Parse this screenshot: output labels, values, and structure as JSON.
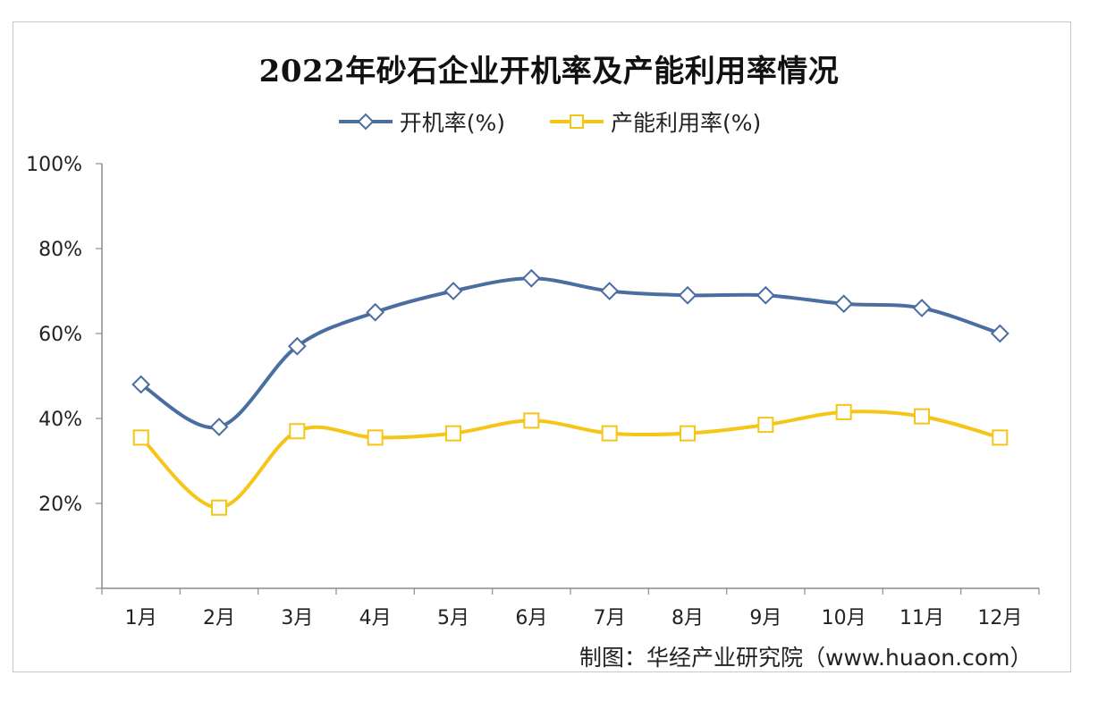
{
  "chart_data": {
    "type": "line",
    "title": "2022年砂石企业开机率及产能利用率情况",
    "categories": [
      "1月",
      "2月",
      "3月",
      "4月",
      "5月",
      "6月",
      "7月",
      "8月",
      "9月",
      "10月",
      "11月",
      "12月"
    ],
    "series": [
      {
        "name": "开机率(%)",
        "color": "#4a6ea0",
        "marker": "diamond",
        "values": [
          48,
          38,
          57,
          65,
          70,
          73,
          70,
          69,
          69,
          67,
          66,
          60
        ]
      },
      {
        "name": "产能利用率(%)",
        "color": "#f5c518",
        "marker": "square",
        "values": [
          35.5,
          19,
          37,
          35.5,
          36.5,
          39.5,
          36.5,
          36.5,
          38.5,
          41.5,
          40.5,
          35.5
        ]
      }
    ],
    "ylim": [
      0,
      100
    ],
    "yticks": [
      "",
      "20%",
      "40%",
      "60%",
      "80%",
      "100%"
    ],
    "legend": "top-center",
    "grid": false
  },
  "source": "制图：华经产业研究院（www.huaon.com）"
}
